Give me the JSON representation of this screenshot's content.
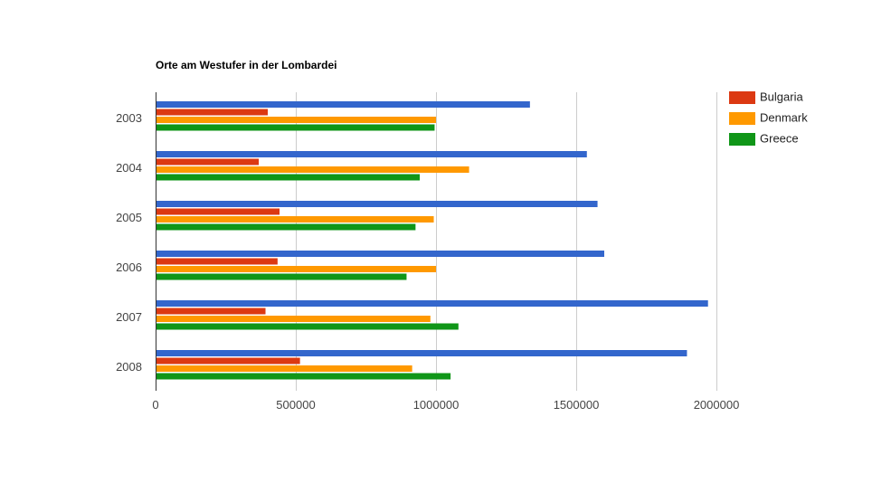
{
  "chart_data": {
    "type": "bar",
    "orientation": "horizontal",
    "title": "Orte am Westufer in der Lombardei",
    "categories": [
      "2003",
      "2004",
      "2005",
      "2006",
      "2007",
      "2008"
    ],
    "x_ticks": [
      "0",
      "500000",
      "1000000",
      "1500000",
      "2000000"
    ],
    "xlim": [
      0,
      2000000
    ],
    "grid": true,
    "legend_position": "right",
    "series": [
      {
        "values": [
          1335000,
          1538000,
          1576000,
          1600000,
          1970000,
          1895000
        ],
        "color": "#3366cc"
      },
      {
        "name": "Bulgaria",
        "values": [
          400000,
          368000,
          442000,
          435000,
          392000,
          515000
        ],
        "color": "#dc3912"
      },
      {
        "name": "Denmark",
        "values": [
          1000000,
          1118000,
          992000,
          1000000,
          980000,
          915000
        ],
        "color": "#ff9900"
      },
      {
        "name": "Greece",
        "values": [
          995000,
          942000,
          927000,
          895000,
          1080000,
          1052000
        ],
        "color": "#109618"
      }
    ]
  }
}
